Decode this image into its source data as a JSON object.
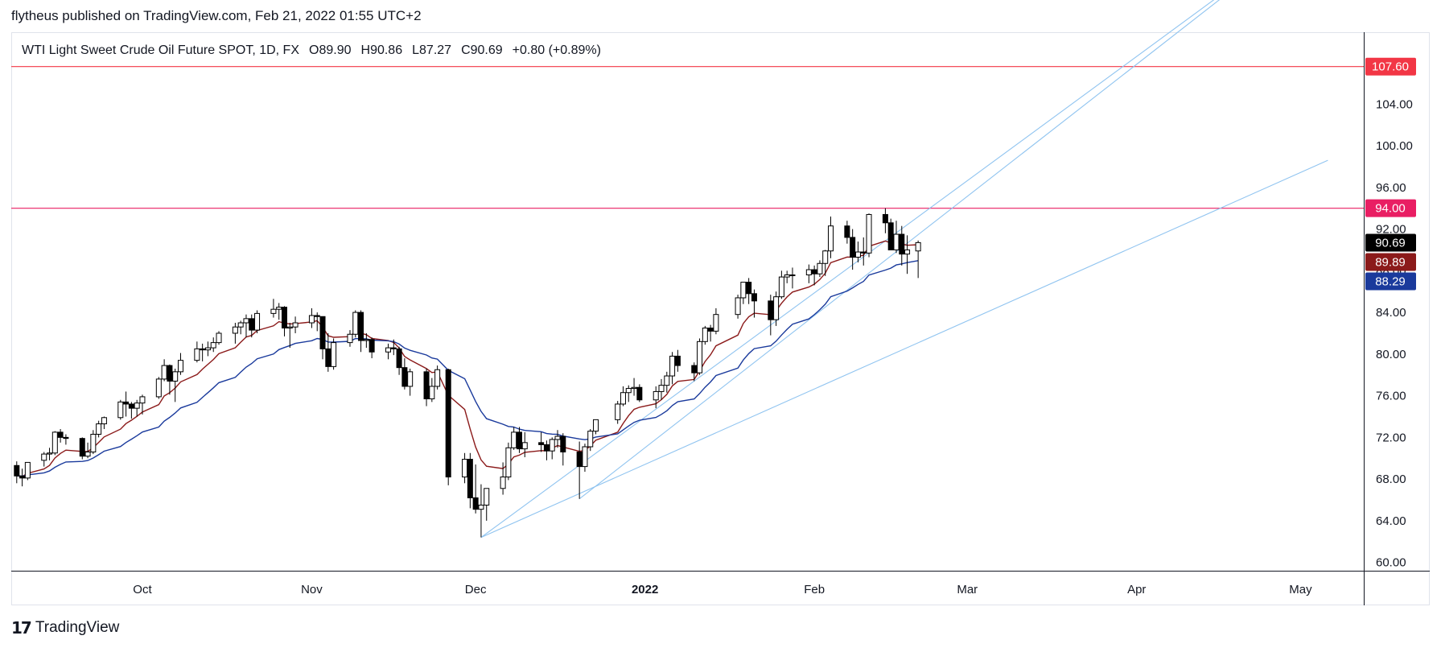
{
  "publish_line": "flytheus published on TradingView.com, Feb 21, 2022 01:55 UTC+2",
  "legend": {
    "symbol": "WTI Light Sweet Crude Oil Future SPOT, 1D, FX",
    "open_label": "O",
    "open": "89.90",
    "high_label": "H",
    "high": "90.86",
    "low_label": "L",
    "low": "87.27",
    "close_label": "C",
    "close": "90.69",
    "change": "+0.80 (+0.89%)"
  },
  "footer": {
    "logo_mark": "17",
    "logo_text": "TradingView"
  },
  "colors": {
    "up_body": "#ffffff",
    "down_body": "#000000",
    "wick": "#000000",
    "ma_fast": "#8b1a1a",
    "ma_slow": "#1a3a9c",
    "trendline": "#90c4f0",
    "resistance_red": "#f23645",
    "resistance_pink": "#e91e63",
    "axis": "#131722",
    "grid_border": "#e0e3eb"
  },
  "chart_data": {
    "type": "candlestick",
    "y_axis": {
      "ticks": [
        "60.00",
        "64.00",
        "68.00",
        "72.00",
        "76.00",
        "80.00",
        "84.00",
        "88.00",
        "92.00",
        "96.00",
        "100.00",
        "104.00"
      ],
      "range": [
        59.2,
        110.9
      ]
    },
    "x_axis": {
      "labels": [
        "Oct",
        "Nov",
        "Dec",
        "2022",
        "Feb",
        "Mar",
        "Apr",
        "May"
      ]
    },
    "price_badges": [
      {
        "label": "107.60",
        "value": 107.6,
        "color": "#f23645",
        "text_color": "#ffffff"
      },
      {
        "label": "94.00",
        "value": 94.0,
        "color": "#e91e63",
        "text_color": "#ffffff"
      },
      {
        "label": "90.69",
        "value": 90.69,
        "color": "#000000",
        "text_color": "#ffffff"
      },
      {
        "label": "89.89",
        "value": 89.89,
        "color": "#8b1a1a",
        "text_color": "#ffffff"
      },
      {
        "label": "88.29",
        "value": 88.29,
        "color": "#1a3a9c",
        "text_color": "#ffffff"
      }
    ],
    "horizontal_lines": [
      {
        "value": 107.6,
        "color": "#f23645"
      },
      {
        "value": 94.0,
        "color": "#e91e63"
      }
    ],
    "trendlines": [
      {
        "from": {
          "date": "2021-12-02",
          "price": 62.4
        },
        "to": {
          "date": "2022-05-02",
          "price": 120.5
        }
      },
      {
        "from": {
          "date": "2021-12-02",
          "price": 62.4
        },
        "to": {
          "date": "2022-05-06",
          "price": 98.6
        }
      },
      {
        "from": {
          "date": "2021-12-20",
          "price": 66.1
        },
        "to": {
          "date": "2022-05-02",
          "price": 120.5
        }
      }
    ],
    "candles": [
      {
        "d": "2021-09-08",
        "o": 69.3,
        "h": 69.7,
        "l": 67.6,
        "c": 68.3
      },
      {
        "d": "2021-09-09",
        "o": 68.3,
        "h": 69.0,
        "l": 67.3,
        "c": 68.1
      },
      {
        "d": "2021-09-10",
        "o": 68.1,
        "h": 69.6,
        "l": 67.9,
        "c": 69.6
      },
      {
        "d": "2021-09-13",
        "o": 69.8,
        "h": 70.6,
        "l": 69.2,
        "c": 70.4
      },
      {
        "d": "2021-09-14",
        "o": 70.4,
        "h": 71.0,
        "l": 69.8,
        "c": 70.5
      },
      {
        "d": "2021-09-15",
        "o": 70.5,
        "h": 72.6,
        "l": 70.3,
        "c": 72.5
      },
      {
        "d": "2021-09-16",
        "o": 72.5,
        "h": 72.8,
        "l": 71.5,
        "c": 72.0
      },
      {
        "d": "2021-09-17",
        "o": 72.0,
        "h": 72.3,
        "l": 71.3,
        "c": 71.9
      },
      {
        "d": "2021-09-20",
        "o": 71.9,
        "h": 72.0,
        "l": 69.9,
        "c": 70.2
      },
      {
        "d": "2021-09-21",
        "o": 70.2,
        "h": 71.5,
        "l": 70.0,
        "c": 70.6
      },
      {
        "d": "2021-09-22",
        "o": 70.6,
        "h": 72.7,
        "l": 70.4,
        "c": 72.3
      },
      {
        "d": "2021-09-23",
        "o": 72.3,
        "h": 73.6,
        "l": 72.0,
        "c": 73.3
      },
      {
        "d": "2021-09-24",
        "o": 73.3,
        "h": 74.0,
        "l": 72.8,
        "c": 73.9
      },
      {
        "d": "2021-09-27",
        "o": 73.9,
        "h": 75.6,
        "l": 73.7,
        "c": 75.4
      },
      {
        "d": "2021-09-28",
        "o": 75.4,
        "h": 76.4,
        "l": 74.0,
        "c": 75.2
      },
      {
        "d": "2021-09-29",
        "o": 75.2,
        "h": 75.4,
        "l": 73.8,
        "c": 74.8
      },
      {
        "d": "2021-09-30",
        "o": 74.8,
        "h": 75.6,
        "l": 74.0,
        "c": 75.3
      },
      {
        "d": "2021-10-01",
        "o": 75.3,
        "h": 76.1,
        "l": 74.2,
        "c": 75.9
      },
      {
        "d": "2021-10-04",
        "o": 75.9,
        "h": 77.8,
        "l": 75.7,
        "c": 77.6
      },
      {
        "d": "2021-10-05",
        "o": 77.6,
        "h": 79.5,
        "l": 77.4,
        "c": 78.9
      },
      {
        "d": "2021-10-06",
        "o": 78.9,
        "h": 79.0,
        "l": 76.1,
        "c": 77.4
      },
      {
        "d": "2021-10-07",
        "o": 77.4,
        "h": 78.6,
        "l": 75.4,
        "c": 78.3
      },
      {
        "d": "2021-10-08",
        "o": 78.3,
        "h": 80.1,
        "l": 78.0,
        "c": 79.4
      },
      {
        "d": "2021-10-11",
        "o": 79.4,
        "h": 81.2,
        "l": 79.2,
        "c": 80.5
      },
      {
        "d": "2021-10-12",
        "o": 80.5,
        "h": 81.0,
        "l": 79.3,
        "c": 80.4
      },
      {
        "d": "2021-10-13",
        "o": 80.4,
        "h": 81.2,
        "l": 79.8,
        "c": 80.6
      },
      {
        "d": "2021-10-14",
        "o": 80.6,
        "h": 81.6,
        "l": 80.2,
        "c": 81.1
      },
      {
        "d": "2021-10-15",
        "o": 81.1,
        "h": 82.2,
        "l": 80.9,
        "c": 82.0
      },
      {
        "d": "2021-10-18",
        "o": 82.0,
        "h": 83.0,
        "l": 81.0,
        "c": 82.6
      },
      {
        "d": "2021-10-19",
        "o": 82.6,
        "h": 83.2,
        "l": 81.9,
        "c": 83.0
      },
      {
        "d": "2021-10-20",
        "o": 83.0,
        "h": 83.8,
        "l": 81.6,
        "c": 83.4
      },
      {
        "d": "2021-10-21",
        "o": 83.4,
        "h": 83.8,
        "l": 81.6,
        "c": 82.3
      },
      {
        "d": "2021-10-22",
        "o": 82.3,
        "h": 84.2,
        "l": 82.0,
        "c": 83.9
      },
      {
        "d": "2021-10-25",
        "o": 83.9,
        "h": 85.3,
        "l": 83.5,
        "c": 84.3
      },
      {
        "d": "2021-10-26",
        "o": 84.3,
        "h": 84.9,
        "l": 83.3,
        "c": 84.5
      },
      {
        "d": "2021-10-27",
        "o": 84.5,
        "h": 84.6,
        "l": 81.7,
        "c": 82.5
      },
      {
        "d": "2021-10-28",
        "o": 82.5,
        "h": 83.0,
        "l": 80.6,
        "c": 82.6
      },
      {
        "d": "2021-10-29",
        "o": 82.6,
        "h": 83.6,
        "l": 82.0,
        "c": 83.0
      },
      {
        "d": "2021-11-01",
        "o": 83.0,
        "h": 84.4,
        "l": 82.5,
        "c": 83.7
      },
      {
        "d": "2021-11-02",
        "o": 83.7,
        "h": 84.0,
        "l": 82.2,
        "c": 83.6
      },
      {
        "d": "2021-11-03",
        "o": 83.6,
        "h": 83.6,
        "l": 79.5,
        "c": 80.5
      },
      {
        "d": "2021-11-04",
        "o": 80.5,
        "h": 82.0,
        "l": 78.3,
        "c": 78.8
      },
      {
        "d": "2021-11-05",
        "o": 78.8,
        "h": 81.5,
        "l": 78.5,
        "c": 81.1
      },
      {
        "d": "2021-11-08",
        "o": 81.1,
        "h": 82.3,
        "l": 80.7,
        "c": 81.9
      },
      {
        "d": "2021-11-09",
        "o": 81.9,
        "h": 84.2,
        "l": 81.6,
        "c": 84.0
      },
      {
        "d": "2021-11-10",
        "o": 84.0,
        "h": 84.2,
        "l": 80.2,
        "c": 81.3
      },
      {
        "d": "2021-11-11",
        "o": 81.3,
        "h": 82.0,
        "l": 80.6,
        "c": 81.4
      },
      {
        "d": "2021-11-12",
        "o": 81.4,
        "h": 81.6,
        "l": 79.6,
        "c": 80.2
      },
      {
        "d": "2021-11-15",
        "o": 80.2,
        "h": 81.0,
        "l": 79.5,
        "c": 80.6
      },
      {
        "d": "2021-11-16",
        "o": 80.6,
        "h": 81.4,
        "l": 79.9,
        "c": 80.5
      },
      {
        "d": "2021-11-17",
        "o": 80.5,
        "h": 80.7,
        "l": 78.0,
        "c": 78.7
      },
      {
        "d": "2021-11-18",
        "o": 78.7,
        "h": 79.6,
        "l": 76.6,
        "c": 76.9
      },
      {
        "d": "2021-11-19",
        "o": 76.9,
        "h": 78.6,
        "l": 76.0,
        "c": 78.3
      },
      {
        "d": "2021-11-22",
        "o": 78.3,
        "h": 78.6,
        "l": 75.0,
        "c": 75.7
      },
      {
        "d": "2021-11-23",
        "o": 75.7,
        "h": 77.7,
        "l": 75.4,
        "c": 76.9
      },
      {
        "d": "2021-11-24",
        "o": 76.9,
        "h": 78.9,
        "l": 76.6,
        "c": 78.5
      },
      {
        "d": "2021-11-26",
        "o": 78.5,
        "h": 78.6,
        "l": 67.4,
        "c": 68.2
      },
      {
        "d": "2021-11-29",
        "o": 68.2,
        "h": 70.5,
        "l": 67.6,
        "c": 69.9
      },
      {
        "d": "2021-11-30",
        "o": 69.9,
        "h": 70.5,
        "l": 65.2,
        "c": 66.2
      },
      {
        "d": "2021-12-01",
        "o": 66.2,
        "h": 69.4,
        "l": 64.7,
        "c": 65.1
      },
      {
        "d": "2021-12-02",
        "o": 65.1,
        "h": 67.5,
        "l": 62.4,
        "c": 65.5
      },
      {
        "d": "2021-12-03",
        "o": 65.5,
        "h": 67.0,
        "l": 64.0,
        "c": 67.1
      },
      {
        "d": "2021-12-06",
        "o": 67.1,
        "h": 69.6,
        "l": 66.5,
        "c": 68.2
      },
      {
        "d": "2021-12-07",
        "o": 68.2,
        "h": 71.5,
        "l": 67.9,
        "c": 71.0
      },
      {
        "d": "2021-12-08",
        "o": 71.0,
        "h": 73.0,
        "l": 70.8,
        "c": 72.5
      },
      {
        "d": "2021-12-09",
        "o": 72.5,
        "h": 73.0,
        "l": 70.5,
        "c": 70.9
      },
      {
        "d": "2021-12-10",
        "o": 70.9,
        "h": 72.5,
        "l": 70.1,
        "c": 71.5
      },
      {
        "d": "2021-12-13",
        "o": 71.5,
        "h": 72.5,
        "l": 70.6,
        "c": 71.3
      },
      {
        "d": "2021-12-14",
        "o": 71.3,
        "h": 71.7,
        "l": 69.8,
        "c": 70.7
      },
      {
        "d": "2021-12-15",
        "o": 70.7,
        "h": 72.0,
        "l": 69.9,
        "c": 71.8
      },
      {
        "d": "2021-12-16",
        "o": 71.8,
        "h": 72.7,
        "l": 71.0,
        "c": 72.1
      },
      {
        "d": "2021-12-17",
        "o": 72.1,
        "h": 72.4,
        "l": 69.3,
        "c": 70.6
      },
      {
        "d": "2021-12-20",
        "o": 70.6,
        "h": 71.6,
        "l": 66.1,
        "c": 69.2
      },
      {
        "d": "2021-12-21",
        "o": 69.2,
        "h": 71.4,
        "l": 68.7,
        "c": 71.1
      },
      {
        "d": "2021-12-22",
        "o": 71.1,
        "h": 72.8,
        "l": 70.7,
        "c": 72.6
      },
      {
        "d": "2021-12-23",
        "o": 72.6,
        "h": 73.7,
        "l": 72.3,
        "c": 73.7
      },
      {
        "d": "2021-12-27",
        "o": 73.7,
        "h": 75.5,
        "l": 73.3,
        "c": 75.2
      },
      {
        "d": "2021-12-28",
        "o": 75.2,
        "h": 76.9,
        "l": 75.0,
        "c": 76.3
      },
      {
        "d": "2021-12-29",
        "o": 76.3,
        "h": 77.0,
        "l": 75.4,
        "c": 76.7
      },
      {
        "d": "2021-12-30",
        "o": 76.7,
        "h": 77.7,
        "l": 76.0,
        "c": 76.8
      },
      {
        "d": "2021-12-31",
        "o": 76.8,
        "h": 77.1,
        "l": 75.4,
        "c": 75.6
      },
      {
        "d": "2022-01-03",
        "o": 75.6,
        "h": 76.9,
        "l": 74.8,
        "c": 76.4
      },
      {
        "d": "2022-01-04",
        "o": 76.4,
        "h": 77.6,
        "l": 75.6,
        "c": 77.0
      },
      {
        "d": "2022-01-05",
        "o": 77.0,
        "h": 78.3,
        "l": 76.3,
        "c": 77.9
      },
      {
        "d": "2022-01-06",
        "o": 77.9,
        "h": 80.2,
        "l": 77.1,
        "c": 79.8
      },
      {
        "d": "2022-01-07",
        "o": 79.8,
        "h": 80.4,
        "l": 78.3,
        "c": 78.9
      },
      {
        "d": "2022-01-10",
        "o": 78.9,
        "h": 79.2,
        "l": 77.4,
        "c": 78.2
      },
      {
        "d": "2022-01-11",
        "o": 78.2,
        "h": 81.5,
        "l": 78.0,
        "c": 81.2
      },
      {
        "d": "2022-01-12",
        "o": 81.2,
        "h": 82.7,
        "l": 80.9,
        "c": 82.5
      },
      {
        "d": "2022-01-13",
        "o": 82.5,
        "h": 82.8,
        "l": 81.2,
        "c": 82.2
      },
      {
        "d": "2022-01-14",
        "o": 82.2,
        "h": 84.4,
        "l": 81.9,
        "c": 83.8
      },
      {
        "d": "2022-01-18",
        "o": 83.8,
        "h": 85.7,
        "l": 83.4,
        "c": 85.4
      },
      {
        "d": "2022-01-19",
        "o": 85.4,
        "h": 86.7,
        "l": 84.8,
        "c": 86.9
      },
      {
        "d": "2022-01-20",
        "o": 86.9,
        "h": 87.3,
        "l": 84.8,
        "c": 85.8
      },
      {
        "d": "2022-01-21",
        "o": 85.8,
        "h": 86.2,
        "l": 83.5,
        "c": 85.1
      },
      {
        "d": "2022-01-24",
        "o": 85.1,
        "h": 85.7,
        "l": 81.8,
        "c": 83.3
      },
      {
        "d": "2022-01-25",
        "o": 83.3,
        "h": 86.0,
        "l": 82.7,
        "c": 85.5
      },
      {
        "d": "2022-01-26",
        "o": 85.5,
        "h": 88.0,
        "l": 85.3,
        "c": 87.4
      },
      {
        "d": "2022-01-27",
        "o": 87.4,
        "h": 88.0,
        "l": 86.8,
        "c": 87.6
      },
      {
        "d": "2022-01-28",
        "o": 87.6,
        "h": 88.3,
        "l": 86.3,
        "c": 87.6
      },
      {
        "d": "2022-01-31",
        "o": 87.6,
        "h": 88.6,
        "l": 86.8,
        "c": 88.1
      },
      {
        "d": "2022-02-01",
        "o": 88.1,
        "h": 88.5,
        "l": 86.6,
        "c": 87.7
      },
      {
        "d": "2022-02-02",
        "o": 87.7,
        "h": 89.0,
        "l": 87.4,
        "c": 88.7
      },
      {
        "d": "2022-02-03",
        "o": 88.7,
        "h": 90.0,
        "l": 87.5,
        "c": 89.9
      },
      {
        "d": "2022-02-04",
        "o": 89.9,
        "h": 93.2,
        "l": 89.2,
        "c": 92.3
      },
      {
        "d": "2022-02-07",
        "o": 92.3,
        "h": 92.8,
        "l": 90.6,
        "c": 91.2
      },
      {
        "d": "2022-02-08",
        "o": 91.2,
        "h": 92.0,
        "l": 88.1,
        "c": 89.3
      },
      {
        "d": "2022-02-09",
        "o": 89.3,
        "h": 90.8,
        "l": 88.8,
        "c": 89.8
      },
      {
        "d": "2022-02-10",
        "o": 89.8,
        "h": 91.2,
        "l": 88.5,
        "c": 89.7
      },
      {
        "d": "2022-02-11",
        "o": 89.7,
        "h": 93.5,
        "l": 89.3,
        "c": 93.4
      },
      {
        "d": "2022-02-14",
        "o": 93.4,
        "h": 94.0,
        "l": 91.6,
        "c": 92.6
      },
      {
        "d": "2022-02-15",
        "o": 92.6,
        "h": 93.0,
        "l": 90.0,
        "c": 90.0
      },
      {
        "d": "2022-02-16",
        "o": 90.0,
        "h": 92.8,
        "l": 89.7,
        "c": 91.5
      },
      {
        "d": "2022-02-17",
        "o": 91.5,
        "h": 92.3,
        "l": 88.5,
        "c": 89.6
      },
      {
        "d": "2022-02-18",
        "o": 89.6,
        "h": 91.4,
        "l": 87.7,
        "c": 90.0
      },
      {
        "d": "2022-02-20",
        "o": 89.9,
        "h": 90.9,
        "l": 87.3,
        "c": 90.7
      }
    ]
  }
}
